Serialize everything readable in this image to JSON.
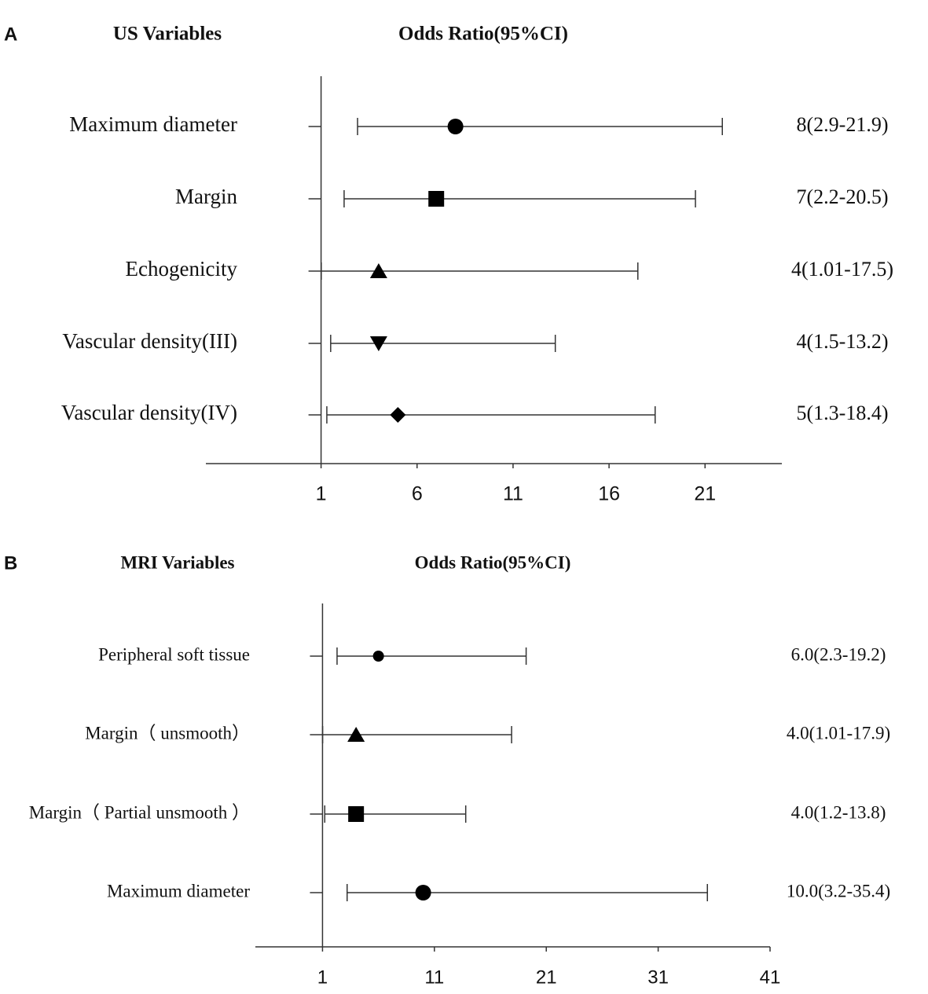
{
  "chart_data": [
    {
      "type": "forest",
      "panel_label": "A",
      "category_header": "US Variables",
      "value_header": "Odds Ratio(95%CI)",
      "categories": [
        "Maximum diameter",
        "Margin",
        "Echogenicity",
        "Vascular density(III)",
        "Vascular density(IV)"
      ],
      "values": [
        8,
        7,
        4,
        4,
        5
      ],
      "lower": [
        2.9,
        2.2,
        1.01,
        1.5,
        1.3
      ],
      "upper": [
        21.9,
        20.5,
        17.5,
        13.2,
        18.4
      ],
      "value_labels": [
        "8(2.9-21.9)",
        "7(2.2-20.5)",
        "4(1.01-17.5)",
        "4(1.5-13.2)",
        "5(1.3-18.4)"
      ],
      "markers": [
        "circle",
        "square",
        "triangle",
        "triangle-down",
        "diamond"
      ],
      "color": "#000000",
      "xlim": [
        -5,
        25
      ],
      "xticks": [
        1,
        6,
        11,
        16,
        21
      ]
    },
    {
      "type": "forest",
      "panel_label": "B",
      "category_header": "MRI Variables",
      "value_header": "Odds Ratio(95%CI)",
      "categories": [
        "Peripheral soft tissue",
        "Margin（ unsmooth）",
        "Margin（ Partial unsmooth ）",
        "Maximum diameter"
      ],
      "values": [
        6.0,
        4.0,
        4.0,
        10.0
      ],
      "lower": [
        2.3,
        1.01,
        1.2,
        3.2
      ],
      "upper": [
        19.2,
        17.9,
        13.8,
        35.4
      ],
      "value_labels": [
        "6.0(2.3-19.2)",
        "4.0(1.01-17.9)",
        "4.0(1.2-13.8)",
        "10.0(3.2-35.4)"
      ],
      "markers": [
        "circle-small",
        "triangle",
        "square",
        "circle"
      ],
      "color": "#000000",
      "xlim": [
        -5,
        41
      ],
      "xticks": [
        1,
        11,
        21,
        31,
        41
      ]
    }
  ]
}
